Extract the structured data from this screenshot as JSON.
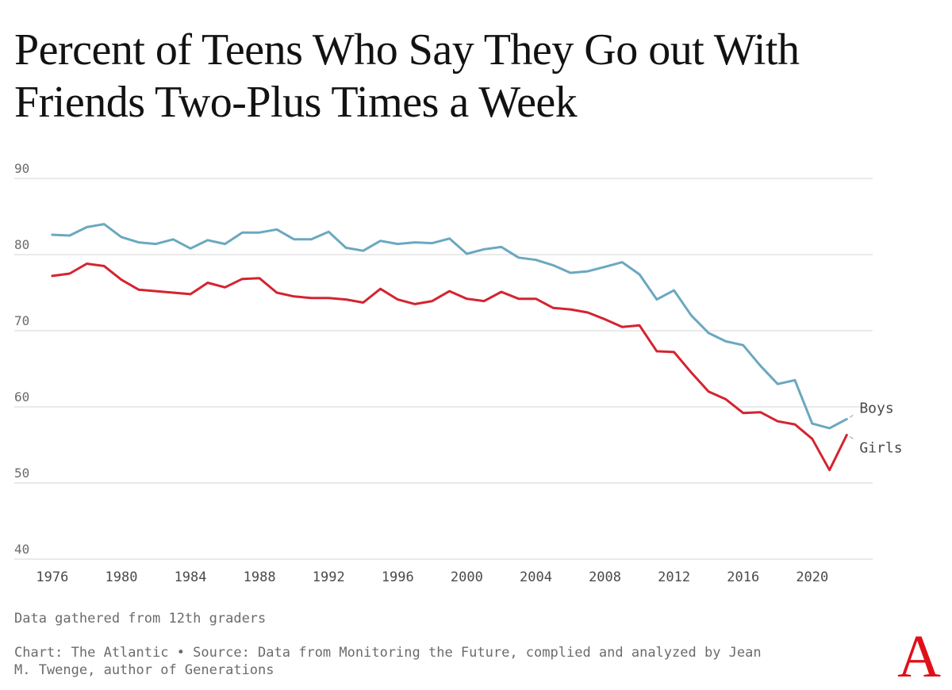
{
  "title_lines": [
    "Percent of Teens Who Say They Go out With",
    "Friends Two-Plus Times a Week"
  ],
  "note": "Data gathered from 12th graders",
  "credit_lines": [
    "Chart: The Atlantic • Source: Data from Monitoring the Future, complied and analyzed by Jean",
    "M. Twenge, author of Generations"
  ],
  "logo_text": "A",
  "chart_data": {
    "type": "line",
    "title": "Percent of Teens Who Say They Go out With Friends Two-Plus Times a Week",
    "xlabel": "",
    "ylabel": "",
    "x": [
      1976,
      1977,
      1978,
      1979,
      1980,
      1981,
      1982,
      1983,
      1984,
      1985,
      1986,
      1987,
      1988,
      1989,
      1990,
      1991,
      1992,
      1993,
      1994,
      1995,
      1996,
      1997,
      1998,
      1999,
      2000,
      2001,
      2002,
      2003,
      2004,
      2005,
      2006,
      2007,
      2008,
      2009,
      2010,
      2011,
      2012,
      2013,
      2014,
      2015,
      2016,
      2017,
      2018,
      2019,
      2020,
      2021,
      2022
    ],
    "xlim": [
      1975.5,
      2023.5
    ],
    "ylim": [
      40,
      90
    ],
    "x_ticks": [
      1976,
      1980,
      1984,
      1988,
      1992,
      1996,
      2000,
      2004,
      2008,
      2012,
      2016,
      2020
    ],
    "y_ticks": [
      40,
      50,
      60,
      70,
      80,
      90
    ],
    "grid": true,
    "legend": "inline labels at line ends",
    "series": [
      {
        "name": "Boys",
        "color": "#6aa8c0",
        "values": [
          82.6,
          82.5,
          83.6,
          84.0,
          82.3,
          81.6,
          81.4,
          82.0,
          80.8,
          81.9,
          81.4,
          82.9,
          82.9,
          83.3,
          82.0,
          82.0,
          83.0,
          80.9,
          80.5,
          81.8,
          81.4,
          81.6,
          81.5,
          82.1,
          80.1,
          80.7,
          81.0,
          79.6,
          79.3,
          78.6,
          77.6,
          77.8,
          78.4,
          79.0,
          77.4,
          74.1,
          75.3,
          72.0,
          69.7,
          68.6,
          68.1,
          65.4,
          63.0,
          63.5,
          57.8,
          57.2,
          58.4
        ]
      },
      {
        "name": "Girls",
        "color": "#d42430",
        "values": [
          77.2,
          77.5,
          78.8,
          78.5,
          76.7,
          75.4,
          75.2,
          75.0,
          74.8,
          76.3,
          75.7,
          76.8,
          76.9,
          75.0,
          74.5,
          74.3,
          74.3,
          74.1,
          73.7,
          75.5,
          74.1,
          73.5,
          73.9,
          75.2,
          74.2,
          73.9,
          75.1,
          74.2,
          74.2,
          73.0,
          72.8,
          72.4,
          71.5,
          70.5,
          70.7,
          67.3,
          67.2,
          64.5,
          62.0,
          61.0,
          59.2,
          59.3,
          58.1,
          57.7,
          55.8,
          51.7,
          56.3
        ]
      }
    ]
  }
}
